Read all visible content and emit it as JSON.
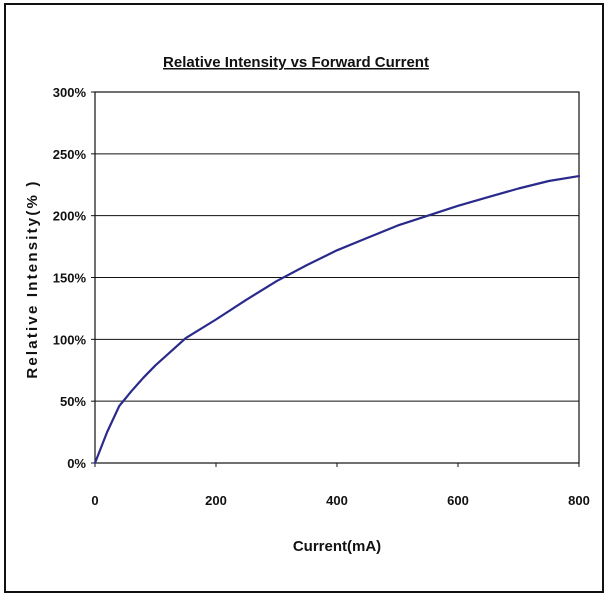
{
  "chart_data": {
    "type": "line",
    "title": "Relative Intensity vs Forward Current",
    "xlabel": "Current(mA)",
    "ylabel": "Relative Intensity(% )",
    "xlim": [
      0,
      800
    ],
    "ylim": [
      0,
      300
    ],
    "x_ticks": [
      "0",
      "200",
      "400",
      "600",
      "800"
    ],
    "y_ticks": [
      "0%",
      "50%",
      "100%",
      "150%",
      "200%",
      "250%",
      "300%"
    ],
    "grid": "horizontal",
    "line_color": "#2a2a8c",
    "series": [
      {
        "x": [
          0,
          20,
          40,
          60,
          80,
          100,
          150,
          200,
          250,
          300,
          350,
          400,
          450,
          500,
          550,
          600,
          650,
          700,
          750,
          800
        ],
        "values": [
          0,
          25,
          46,
          58,
          69,
          79,
          101,
          116,
          132,
          147,
          160,
          172,
          182,
          192,
          200,
          208,
          215,
          222,
          228,
          232
        ]
      }
    ]
  }
}
